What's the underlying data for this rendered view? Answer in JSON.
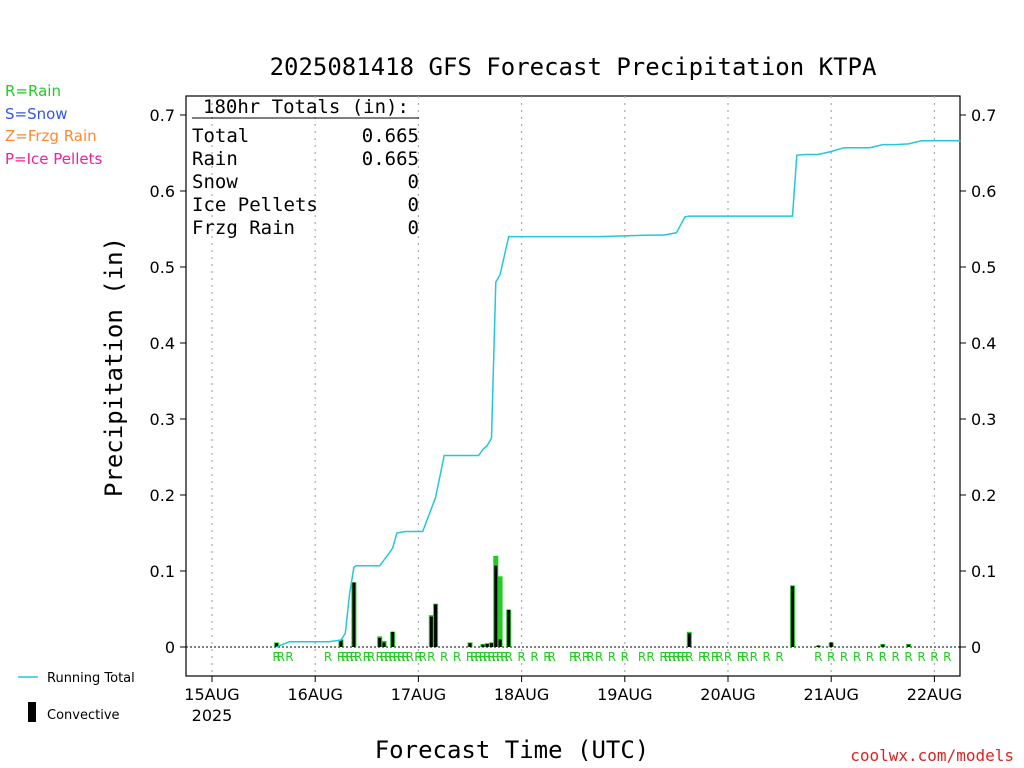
{
  "chart_data": {
    "type": "line",
    "title": "2025081418 GFS Forecast Precipitation KTPA",
    "xlabel": "Forecast Time (UTC)",
    "ylabel": "Precipitation (in)",
    "ylim": [
      0,
      0.7
    ],
    "yticks": [
      "0",
      "0.1",
      "0.2",
      "0.3",
      "0.4",
      "0.5",
      "0.6",
      "0.7"
    ],
    "xticks": [
      "15AUG",
      "16AUG",
      "17AUG",
      "18AUG",
      "19AUG",
      "20AUG",
      "21AUG",
      "22AUG"
    ],
    "year_label": "2025",
    "grid": "vertical dotted",
    "legend_placement": "bottom-left",
    "precip_type_legend": [
      {
        "label": "R=Rain",
        "color": "#22cc22"
      },
      {
        "label": "S=Snow",
        "color": "#3355ee"
      },
      {
        "label": "Z=Frzg Rain",
        "color": "#ff8833"
      },
      {
        "label": "P=Ice Pellets",
        "color": "#ee2299"
      }
    ],
    "series_legend": [
      {
        "label": "Running Total",
        "color": "#22c8d8"
      },
      {
        "label": "Convective",
        "color": "#000000"
      }
    ],
    "totals": {
      "header": "180hr Totals (in):",
      "rows": [
        {
          "label": "Total",
          "value": "0.665"
        },
        {
          "label": "Rain",
          "value": "0.665"
        },
        {
          "label": "Snow",
          "value": "0"
        },
        {
          "label": "Ice Pellets",
          "value": "0"
        },
        {
          "label": "Frzg Rain",
          "value": "0"
        }
      ]
    },
    "running_total": {
      "name": "Running Total",
      "x_hours": [
        21,
        24,
        33,
        36,
        37,
        38,
        39,
        39.5,
        40,
        42,
        45,
        47,
        48,
        49,
        51,
        54,
        55,
        58,
        60,
        66,
        67,
        68,
        69,
        70,
        71,
        72,
        73,
        75,
        78,
        81,
        84,
        96,
        108,
        111,
        114,
        116,
        117,
        120,
        132,
        135,
        138,
        141,
        142,
        144,
        147,
        150,
        153,
        156,
        159,
        162,
        165,
        168,
        171,
        174,
        177,
        180
      ],
      "values": [
        0.0,
        0.007,
        0.007,
        0.009,
        0.018,
        0.07,
        0.105,
        0.107,
        0.107,
        0.107,
        0.107,
        0.122,
        0.13,
        0.15,
        0.152,
        0.152,
        0.152,
        0.197,
        0.252,
        0.252,
        0.252,
        0.252,
        0.26,
        0.265,
        0.275,
        0.48,
        0.49,
        0.54,
        0.54,
        0.54,
        0.54,
        0.54,
        0.542,
        0.542,
        0.545,
        0.566,
        0.567,
        0.567,
        0.567,
        0.567,
        0.567,
        0.567,
        0.647,
        0.648,
        0.648,
        0.652,
        0.657,
        0.657,
        0.657,
        0.661,
        0.661,
        0.662,
        0.666,
        0.666,
        0.666,
        0.666
      ]
    },
    "bars": {
      "name": "Convective",
      "x_hours": [
        21,
        36,
        39,
        45,
        46,
        48,
        57,
        58,
        66,
        69,
        70,
        71,
        72,
        73,
        75,
        117,
        141,
        147,
        150,
        162,
        168
      ],
      "total": [
        0.006,
        0.01,
        0.085,
        0.014,
        0.008,
        0.02,
        0.042,
        0.057,
        0.006,
        0.004,
        0.005,
        0.006,
        0.12,
        0.093,
        0.049,
        0.02,
        0.081,
        0.002,
        0.006,
        0.004,
        0.004
      ],
      "convective": [
        0.005,
        0.009,
        0.085,
        0.012,
        0.006,
        0.02,
        0.04,
        0.056,
        0.005,
        0.003,
        0.004,
        0.005,
        0.107,
        0.01,
        0.049,
        0.018,
        0.08,
        0.002,
        0.006,
        0.003,
        0.003
      ]
    },
    "precip_type_markers": {
      "symbol": "R",
      "x_hours": [
        21,
        22,
        24,
        33,
        36,
        37,
        38,
        39,
        40,
        42,
        43,
        45,
        46,
        47,
        48,
        49,
        50,
        51,
        52,
        54,
        55,
        57,
        60,
        63,
        66,
        67,
        68,
        69,
        70,
        71,
        72,
        73,
        74,
        75,
        78,
        81,
        84,
        85,
        90,
        91,
        93,
        94,
        96,
        99,
        102,
        106,
        108,
        111,
        112,
        113,
        114,
        115,
        116,
        117,
        120,
        121,
        123,
        124,
        126,
        129,
        130,
        132,
        135,
        138,
        147,
        150,
        153,
        156,
        159,
        162,
        165,
        168,
        171,
        174,
        177
      ]
    }
  },
  "credit": "coolwx.com/models"
}
